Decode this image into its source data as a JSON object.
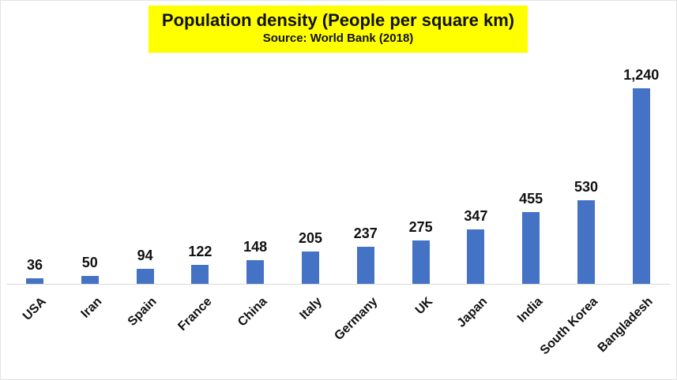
{
  "chart_data": {
    "type": "bar",
    "title": "Population density (People per square km)",
    "subtitle": "Source: World Bank (2018)",
    "categories": [
      "USA",
      "Iran",
      "Spain",
      "France",
      "China",
      "Italy",
      "Germany",
      "UK",
      "Japan",
      "India",
      "South Korea",
      "Bangladesh"
    ],
    "values": [
      36,
      50,
      94,
      122,
      148,
      205,
      237,
      275,
      347,
      455,
      530,
      1240
    ],
    "value_labels": [
      "36",
      "50",
      "94",
      "122",
      "148",
      "205",
      "237",
      "275",
      "347",
      "455",
      "530",
      "1,240"
    ],
    "xlabel": "",
    "ylabel": "",
    "ylim": [
      0,
      1300
    ],
    "grid": false,
    "legend": "none",
    "bar_color": "#4472c4",
    "title_background": "#ffff00"
  }
}
